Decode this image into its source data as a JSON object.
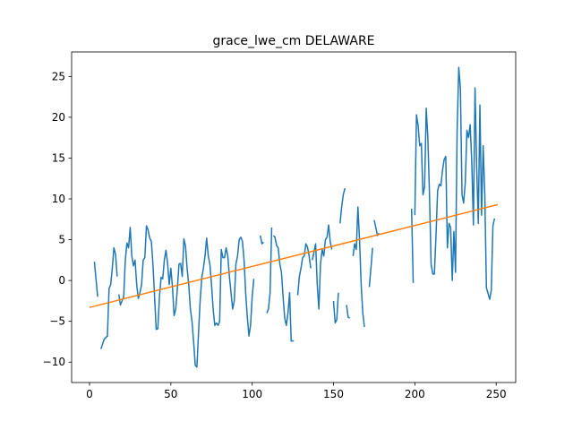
{
  "chart_data": {
    "type": "line",
    "title": "grace_lwe_cm DELAWARE",
    "xlabel": "",
    "ylabel": "",
    "xlim": [
      -11,
      262
    ],
    "ylim": [
      -12.5,
      28
    ],
    "xticks": [
      0,
      50,
      100,
      150,
      200,
      250
    ],
    "yticks": [
      -10,
      -5,
      0,
      5,
      10,
      15,
      20,
      25
    ],
    "grid": false,
    "series": [
      {
        "color": "#1f77b4",
        "segments": [
          [
            [
              3,
              2.3
            ],
            [
              5,
              -2.0
            ]
          ],
          [
            [
              7,
              -8.4
            ],
            [
              9,
              -7.2
            ],
            [
              11,
              -6.8
            ],
            [
              12,
              -1.0
            ],
            [
              13,
              -0.5
            ],
            [
              14,
              1.5
            ],
            [
              15,
              4.0
            ],
            [
              16,
              3.2
            ],
            [
              17,
              0.5
            ]
          ],
          [
            [
              18,
              -1.7
            ],
            [
              19,
              -3.0
            ],
            [
              20,
              -2.5
            ],
            [
              21,
              -2.0
            ],
            [
              22,
              2.5
            ],
            [
              23,
              4.6
            ],
            [
              24,
              4.0
            ],
            [
              25,
              6.5
            ],
            [
              26,
              3.0
            ],
            [
              27,
              1.8
            ],
            [
              28,
              2.5
            ],
            [
              29,
              -0.5
            ],
            [
              30,
              -2.2
            ],
            [
              31,
              -1.5
            ],
            [
              32,
              -0.5
            ],
            [
              33,
              2.5
            ],
            [
              34,
              2.8
            ],
            [
              35,
              6.7
            ],
            [
              36,
              6.2
            ],
            [
              37,
              5.2
            ],
            [
              38,
              4.8
            ],
            [
              39,
              2.0
            ],
            [
              40,
              -2.0
            ],
            [
              41,
              -6.0
            ],
            [
              42,
              -5.9
            ],
            [
              43,
              -2.0
            ],
            [
              44,
              0.4
            ],
            [
              45,
              0.2
            ],
            [
              46,
              2.5
            ],
            [
              47,
              3.7
            ],
            [
              48,
              2.1
            ],
            [
              49,
              -0.5
            ],
            [
              50,
              1.5
            ],
            [
              51,
              -0.8
            ],
            [
              52,
              -4.3
            ],
            [
              53,
              -3.5
            ],
            [
              54,
              -1.0
            ],
            [
              55,
              2.0
            ],
            [
              56,
              2.1
            ],
            [
              57,
              0.5
            ],
            [
              58,
              5.1
            ],
            [
              59,
              4.2
            ],
            [
              60,
              1.5
            ],
            [
              61,
              -0.5
            ],
            [
              62,
              -3.5
            ],
            [
              63,
              -5.0
            ],
            [
              64,
              -7.5
            ],
            [
              65,
              -10.4
            ],
            [
              66,
              -10.6
            ],
            [
              67,
              -6.5
            ],
            [
              68,
              -2.5
            ],
            [
              69,
              0.3
            ],
            [
              70,
              1.5
            ],
            [
              71,
              3.0
            ],
            [
              72,
              5.2
            ],
            [
              73,
              3.0
            ],
            [
              74,
              2.0
            ],
            [
              75,
              -0.5
            ],
            [
              76,
              -3.5
            ],
            [
              77,
              -5.5
            ],
            [
              78,
              -5.2
            ],
            [
              79,
              -5.5
            ],
            [
              80,
              -5.0
            ],
            [
              81,
              3.8
            ],
            [
              82,
              2.8
            ],
            [
              83,
              2.8
            ],
            [
              84,
              4.0
            ],
            [
              85,
              3.0
            ],
            [
              86,
              0.5
            ],
            [
              87,
              -1.5
            ],
            [
              88,
              -3.5
            ],
            [
              89,
              -2.5
            ],
            [
              90,
              2.0
            ],
            [
              91,
              3.0
            ],
            [
              92,
              5.0
            ],
            [
              93,
              5.3
            ],
            [
              94,
              4.8
            ],
            [
              95,
              2.5
            ],
            [
              96,
              -1.5
            ],
            [
              97,
              -4.5
            ],
            [
              98,
              -6.8
            ],
            [
              99,
              -5.5
            ],
            [
              100,
              -2.0
            ],
            [
              101,
              0.2
            ]
          ],
          [
            [
              105,
              5.5
            ],
            [
              106,
              4.5
            ],
            [
              107,
              4.7
            ]
          ],
          [
            [
              109,
              -4.0
            ],
            [
              110,
              -3.5
            ],
            [
              111,
              -1.5
            ],
            [
              112,
              6.5
            ]
          ],
          [
            [
              113,
              5.5
            ],
            [
              114,
              5.3
            ],
            [
              115,
              4.3
            ],
            [
              116,
              4.0
            ],
            [
              117,
              2.0
            ],
            [
              118,
              1.0
            ],
            [
              119,
              -2.0
            ],
            [
              120,
              -4.6
            ],
            [
              121,
              -5.5
            ],
            [
              122,
              -4.0
            ],
            [
              123,
              -1.5
            ],
            [
              124,
              -7.5
            ]
          ],
          [
            [
              125,
              -7.4
            ]
          ],
          [
            [
              128,
              -1.8
            ],
            [
              129,
              0.5
            ],
            [
              130,
              1.5
            ],
            [
              131,
              2.8
            ],
            [
              132,
              3.0
            ],
            [
              133,
              4.5
            ],
            [
              134,
              4.1
            ],
            [
              135,
              3.0
            ],
            [
              136,
              1.5
            ]
          ],
          [
            [
              137,
              2.5
            ],
            [
              138,
              3.5
            ],
            [
              139,
              4.5
            ],
            [
              140,
              -0.5
            ],
            [
              141,
              -3.5
            ],
            [
              142,
              2.0
            ],
            [
              143,
              3.8
            ],
            [
              144,
              3.0
            ],
            [
              145,
              5.0
            ],
            [
              146,
              5.3
            ],
            [
              147,
              6.8
            ],
            [
              148,
              4.7
            ],
            [
              149,
              3.8
            ]
          ],
          [
            [
              150,
              -2.5
            ],
            [
              151,
              -5.2
            ],
            [
              152,
              -4.8
            ],
            [
              153,
              -1.5
            ]
          ],
          [
            [
              154,
              7.0
            ],
            [
              155,
              9.0
            ],
            [
              156,
              10.5
            ],
            [
              157,
              11.3
            ]
          ],
          [
            [
              158,
              -3.0
            ],
            [
              159,
              -4.5
            ],
            [
              160,
              -4.6
            ]
          ],
          [
            [
              162,
              3.0
            ],
            [
              163,
              4.5
            ],
            [
              164,
              3.8
            ],
            [
              165,
              9.0
            ],
            [
              166,
              5.0
            ],
            [
              167,
              -0.5
            ],
            [
              168,
              -4.0
            ],
            [
              169,
              -5.7
            ]
          ],
          [
            [
              172,
              -0.8
            ],
            [
              173,
              1.5
            ],
            [
              174,
              4.0
            ]
          ],
          [
            [
              175,
              7.4
            ],
            [
              176,
              6.5
            ],
            [
              177,
              5.5
            ],
            [
              178,
              5.8
            ]
          ],
          [
            [
              198,
              8.8
            ],
            [
              199,
              -0.3
            ]
          ],
          [
            [
              200,
              8.0
            ],
            [
              201,
              20.3
            ],
            [
              202,
              19.0
            ],
            [
              203,
              16.5
            ],
            [
              204,
              16.8
            ],
            [
              205,
              10.5
            ],
            [
              206,
              11.5
            ],
            [
              207,
              21.1
            ],
            [
              208,
              17.5
            ],
            [
              209,
              10.5
            ],
            [
              210,
              2.0
            ],
            [
              211,
              0.8
            ],
            [
              212,
              0.8
            ],
            [
              213,
              5.5
            ],
            [
              214,
              11.0
            ],
            [
              215,
              11.8
            ],
            [
              216,
              11.6
            ],
            [
              217,
              13.5
            ],
            [
              218,
              14.8
            ],
            [
              219,
              15.2
            ],
            [
              220,
              4.0
            ],
            [
              221,
              7.0
            ],
            [
              222,
              6.5
            ],
            [
              223,
              0.0
            ],
            [
              224,
              6.0
            ],
            [
              225,
              1.0
            ],
            [
              226,
              18.5
            ],
            [
              227,
              26.1
            ],
            [
              228,
              23.5
            ],
            [
              229,
              10.5
            ],
            [
              230,
              9.5
            ],
            [
              231,
              12.0
            ],
            [
              232,
              18.4
            ],
            [
              233,
              17.5
            ],
            [
              234,
              19.1
            ],
            [
              235,
              14.5
            ],
            [
              236,
              6.8
            ],
            [
              237,
              23.6
            ],
            [
              238,
              14.0
            ],
            [
              239,
              7.0
            ],
            [
              240,
              21.5
            ],
            [
              241,
              8.0
            ],
            [
              242,
              16.5
            ],
            [
              243,
              10.5
            ],
            [
              244,
              -0.9
            ],
            [
              245,
              -1.6
            ],
            [
              246,
              -2.3
            ],
            [
              247,
              -1.2
            ],
            [
              248,
              6.7
            ],
            [
              249,
              7.6
            ]
          ]
        ]
      },
      {
        "color": "#ff7f0e",
        "segments": [
          [
            [
              0,
              -3.3
            ],
            [
              251,
              9.3
            ]
          ]
        ]
      }
    ]
  }
}
